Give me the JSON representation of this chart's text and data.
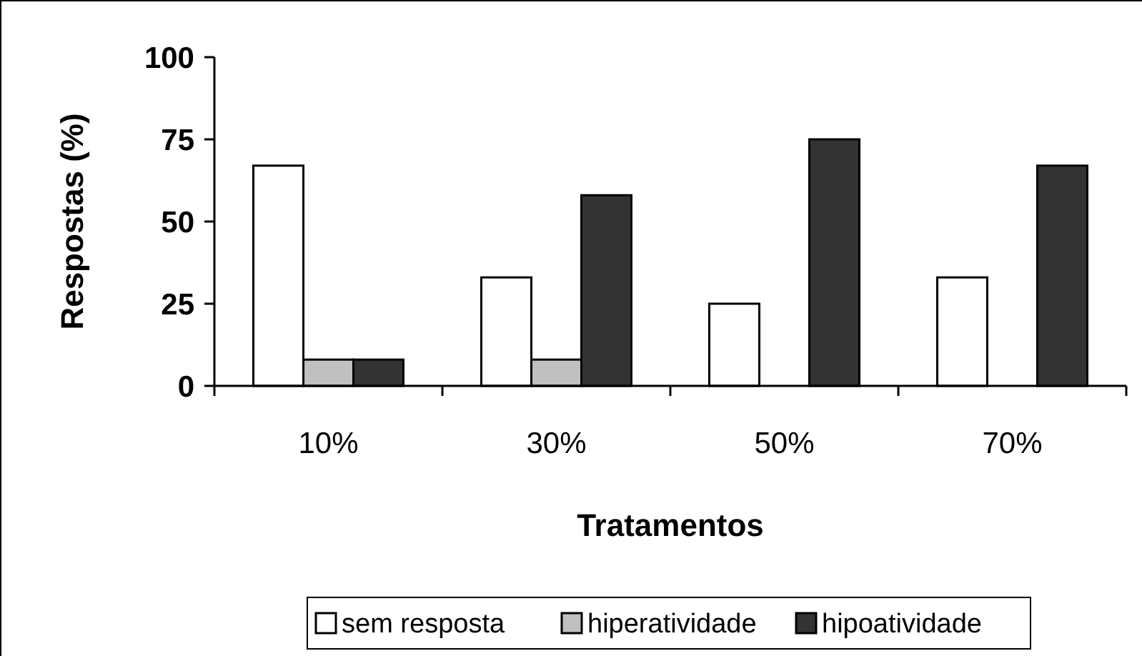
{
  "chart_data": {
    "type": "bar",
    "xlabel": "Tratamentos",
    "ylabel": "Respostas (%)",
    "categories": [
      "10%",
      "30%",
      "50%",
      "70%"
    ],
    "series": [
      {
        "name": "sem resposta",
        "color": "#ffffff",
        "values": [
          67,
          33,
          25,
          33
        ]
      },
      {
        "name": "hiperatividade",
        "color": "#c0c0c0",
        "values": [
          8,
          8,
          0,
          0
        ]
      },
      {
        "name": "hipoatividade",
        "color": "#333333",
        "values": [
          8,
          58,
          75,
          67
        ]
      }
    ],
    "ylim": [
      0,
      100
    ],
    "yticks": [
      0,
      25,
      50,
      75,
      100
    ],
    "grid": false,
    "legend": "bottom"
  }
}
